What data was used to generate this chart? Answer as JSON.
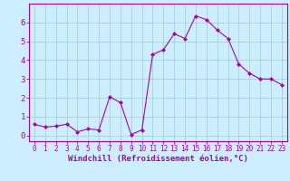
{
  "x": [
    0,
    1,
    2,
    3,
    4,
    5,
    6,
    7,
    8,
    9,
    10,
    11,
    12,
    13,
    14,
    15,
    16,
    17,
    18,
    19,
    20,
    21,
    22,
    23
  ],
  "y": [
    0.6,
    0.45,
    0.5,
    0.6,
    0.2,
    0.35,
    0.3,
    2.05,
    1.75,
    0.05,
    0.3,
    4.3,
    4.55,
    5.4,
    5.15,
    6.35,
    6.15,
    5.6,
    5.15,
    3.8,
    3.3,
    3.0,
    3.0,
    2.7
  ],
  "line_color": "#aa00aa",
  "marker_color": "#aa00aa",
  "bg_color": "#cceeff",
  "grid_color": "#99cccc",
  "xlabel": "Windchill (Refroidissement éolien,°C)",
  "xlim": [
    -0.5,
    23.5
  ],
  "ylim": [
    -0.3,
    7.0
  ],
  "yticks": [
    0,
    1,
    2,
    3,
    4,
    5,
    6
  ],
  "xticks": [
    0,
    1,
    2,
    3,
    4,
    5,
    6,
    7,
    8,
    9,
    10,
    11,
    12,
    13,
    14,
    15,
    16,
    17,
    18,
    19,
    20,
    21,
    22,
    23
  ],
  "label_color": "#aa00aa",
  "tick_color": "#aa00aa",
  "spine_color": "#aa00aa",
  "tick_font_size": 5.5,
  "xlabel_font_size": 6.5
}
